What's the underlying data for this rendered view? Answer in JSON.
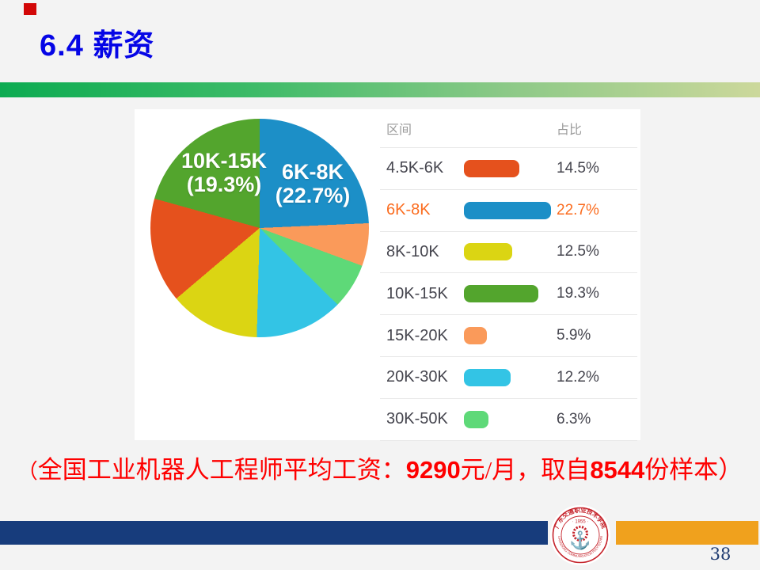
{
  "slide": {
    "title": "6.4 薪资",
    "caption": {
      "prefix": "（",
      "lead": "全国工业机器人工程师平均工资：",
      "salary": "9290",
      "mid": "元/月，取自",
      "samples": "8544",
      "suffix": "份样本）"
    },
    "page_number": "38"
  },
  "chart_data": {
    "type": "pie",
    "legend_headers": {
      "range": "区间",
      "share": "占比"
    },
    "legend_rows": [
      {
        "label": "4.5K-6K",
        "value": 14.5,
        "pct": "14.5%",
        "color": "#e5511d",
        "highlight": false
      },
      {
        "label": "6K-8K",
        "value": 22.7,
        "pct": "22.7%",
        "color": "#1c8fc7",
        "highlight": true
      },
      {
        "label": "8K-10K",
        "value": 12.5,
        "pct": "12.5%",
        "color": "#dbd513",
        "highlight": false
      },
      {
        "label": "10K-15K",
        "value": 19.3,
        "pct": "19.3%",
        "color": "#53a52d",
        "highlight": false
      },
      {
        "label": "15K-20K",
        "value": 5.9,
        "pct": "5.9%",
        "color": "#fa9a5a",
        "highlight": false
      },
      {
        "label": "20K-30K",
        "value": 12.2,
        "pct": "12.2%",
        "color": "#33c4e5",
        "highlight": false
      },
      {
        "label": "30K-50K",
        "value": 6.3,
        "pct": "6.3%",
        "color": "#5ed978",
        "highlight": false
      }
    ],
    "pie_order_clockwise_from_top": [
      "6K-8K",
      "15K-20K",
      "30K-50K",
      "20K-30K",
      "8K-10K",
      "4.5K-6K",
      "10K-15K"
    ],
    "pie_labels": [
      {
        "line1": "10K-15K",
        "line2": "(19.3%)"
      },
      {
        "line1": "6K-8K",
        "line2": "(22.7%)"
      }
    ],
    "legend_position": "right",
    "note": "slice angles proportional to values (sum 93.4 normalized to 360deg)"
  },
  "footer": {
    "logo": {
      "year": "1955",
      "name_cn": "广东交通职业技术学院",
      "name_en": "GUANGDONG COMMUNICATION POLYTECHNIC",
      "color": "#c5232b"
    }
  },
  "colors": {
    "title_blue": "#0505e6",
    "caption_red": "#fe0000",
    "accent_green_left": "#0cab51",
    "accent_green_right": "#ccd89b",
    "navy_bar": "#173c7c",
    "orange_bar": "#f0a11d",
    "highlight_text": "#fb6d20",
    "background": "#f3f3f3"
  }
}
